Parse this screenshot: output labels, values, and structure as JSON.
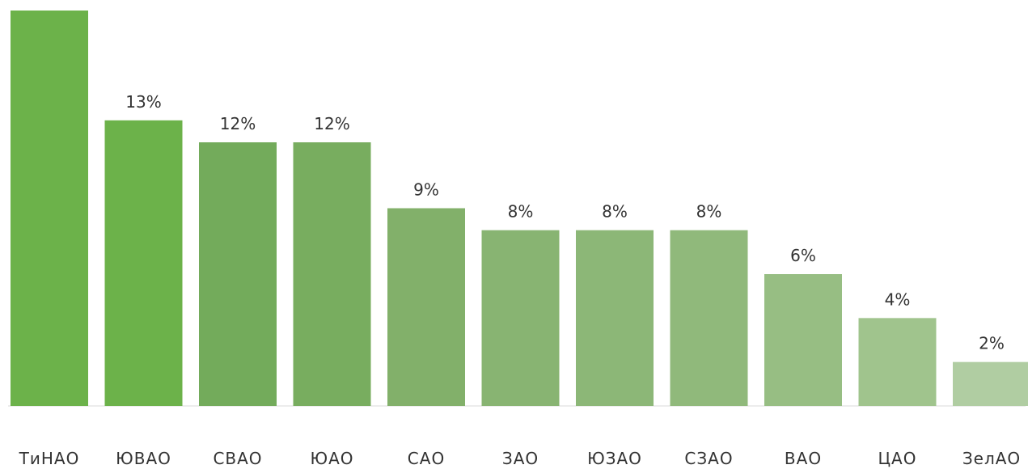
{
  "chart_data": {
    "type": "bar",
    "categories": [
      "ТиНАО",
      "ЮВАО",
      "СВАО",
      "ЮАО",
      "САО",
      "ЗАО",
      "ЮЗАО",
      "СЗАО",
      "ВАО",
      "ЦАО",
      "ЗелАО"
    ],
    "values": [
      18,
      13,
      12,
      12,
      9,
      8,
      8,
      8,
      6,
      4,
      2
    ],
    "value_labels": [
      "",
      "13%",
      "12%",
      "12%",
      "9%",
      "8%",
      "8%",
      "8%",
      "6%",
      "4%",
      "2%"
    ],
    "colors": [
      "#6cb24a",
      "#6cb24a",
      "#73ab5b",
      "#78ad5f",
      "#82b06a",
      "#88b472",
      "#8cb777",
      "#90b97b",
      "#97be83",
      "#a0c48d",
      "#b0cda2"
    ],
    "title": "",
    "xlabel": "",
    "ylabel": "",
    "ylim": [
      0,
      18
    ],
    "grid": false,
    "legend": "none"
  }
}
